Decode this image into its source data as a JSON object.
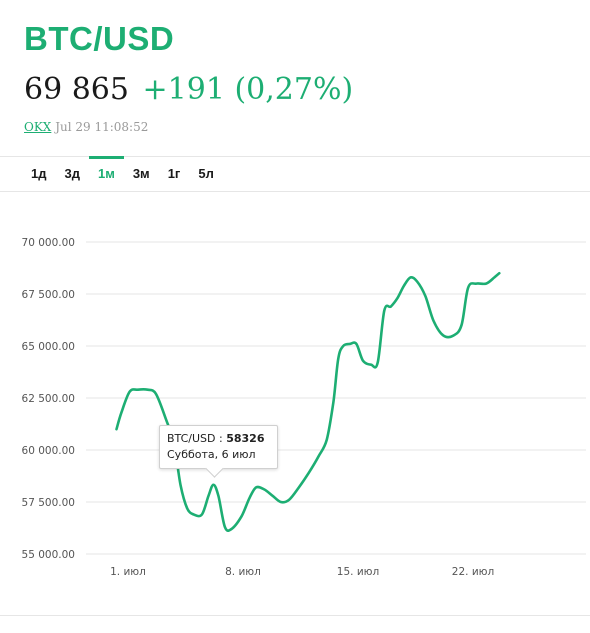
{
  "header": {
    "title": "BTC/USD",
    "price": "69 865",
    "change": "+191 (0,27%)",
    "exchange": "OKX",
    "timestamp": "Jul 29 11:08:52"
  },
  "tabs": [
    {
      "label": "1д",
      "active": false
    },
    {
      "label": "3д",
      "active": false
    },
    {
      "label": "1м",
      "active": true
    },
    {
      "label": "3м",
      "active": false
    },
    {
      "label": "1г",
      "active": false
    },
    {
      "label": "5л",
      "active": false
    }
  ],
  "colors": {
    "accent": "#1dae73",
    "grid": "#e6e6e6",
    "text": "#1a1a1a"
  },
  "tooltip": {
    "series": "BTC/USD",
    "separator": " : ",
    "value": "58326",
    "date": "Суббота, 6 июл"
  },
  "chart_data": {
    "type": "line",
    "ylim": [
      55000,
      70000
    ],
    "y_ticks": [
      55000,
      57500,
      60000,
      62500,
      65000,
      67500,
      70000
    ],
    "y_tick_labels": [
      "55 000.00",
      "57 500.00",
      "60 000.00",
      "62 500.00",
      "65 000.00",
      "67 500.00",
      "70 000.00"
    ],
    "x_ticks": [
      {
        "day": 1,
        "label": "1. июл"
      },
      {
        "day": 8,
        "label": "8. июл"
      },
      {
        "day": 15,
        "label": "15. июл"
      },
      {
        "day": 22,
        "label": "22. июл"
      }
    ],
    "x_range": [
      0,
      29.8
    ],
    "series": [
      {
        "points": [
          [
            0.3,
            61000
          ],
          [
            0.6,
            61800
          ],
          [
            1.1,
            62800
          ],
          [
            1.6,
            62900
          ],
          [
            2.2,
            62900
          ],
          [
            2.7,
            62700
          ],
          [
            3.3,
            61500
          ],
          [
            3.8,
            60300
          ],
          [
            4.2,
            58300
          ],
          [
            4.6,
            57200
          ],
          [
            5.0,
            56900
          ],
          [
            5.5,
            56900
          ],
          [
            5.9,
            57800
          ],
          [
            6.2,
            58326
          ],
          [
            6.5,
            57800
          ],
          [
            6.9,
            56300
          ],
          [
            7.3,
            56200
          ],
          [
            7.9,
            56800
          ],
          [
            8.4,
            57700
          ],
          [
            8.8,
            58200
          ],
          [
            9.3,
            58100
          ],
          [
            9.8,
            57800
          ],
          [
            10.3,
            57500
          ],
          [
            10.8,
            57600
          ],
          [
            11.4,
            58200
          ],
          [
            12.0,
            58900
          ],
          [
            12.6,
            59700
          ],
          [
            13.1,
            60500
          ],
          [
            13.5,
            62300
          ],
          [
            13.8,
            64400
          ],
          [
            14.1,
            65000
          ],
          [
            14.5,
            65100
          ],
          [
            14.9,
            65100
          ],
          [
            15.3,
            64300
          ],
          [
            15.8,
            64100
          ],
          [
            16.2,
            64200
          ],
          [
            16.6,
            66700
          ],
          [
            17.0,
            66900
          ],
          [
            17.4,
            67300
          ],
          [
            17.8,
            67900
          ],
          [
            18.2,
            68300
          ],
          [
            18.6,
            68100
          ],
          [
            19.1,
            67400
          ],
          [
            19.6,
            66200
          ],
          [
            20.2,
            65500
          ],
          [
            20.8,
            65500
          ],
          [
            21.3,
            66000
          ],
          [
            21.7,
            67800
          ],
          [
            22.2,
            68000
          ],
          [
            22.8,
            68000
          ],
          [
            23.3,
            68300
          ],
          [
            23.6,
            68500
          ]
        ]
      }
    ]
  }
}
